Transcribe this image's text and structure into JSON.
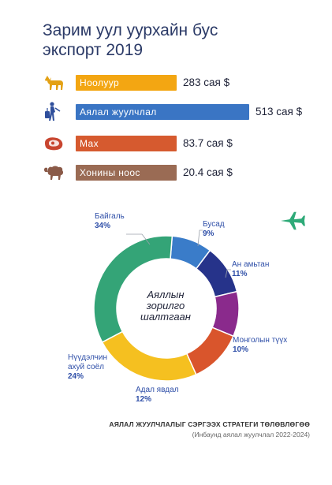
{
  "title": "Зарим уул уурхайн бус экспорт 2019",
  "colors": {
    "cashmere": "#f3a612",
    "tourism": "#3a75c4",
    "meat": "#d65a2f",
    "wool": "#9a6b54",
    "icon_blue": "#2f4f9c",
    "icon_red": "#c8452f",
    "icon_gold": "#e3a115",
    "icon_brown": "#8a5a48",
    "plane": "#2eaa78"
  },
  "icons": [
    "goat-icon",
    "traveler-icon",
    "meat-icon",
    "sheep-icon",
    "airplane-icon"
  ],
  "chart_data": [
    {
      "type": "bar",
      "orientation": "horizontal",
      "title": "Зарим уул уурхайн бус экспорт 2019",
      "categories": [
        "Ноолуур",
        "Аялал жуулчлал",
        "Мах",
        "Хонины ноос"
      ],
      "values": [
        283,
        513,
        83.7,
        20.4
      ],
      "value_labels": [
        "283 сая $",
        "513 сая $",
        "83.7 сая $",
        "20.4 сая $"
      ],
      "unit": "сая $"
    },
    {
      "type": "pie",
      "donut": true,
      "center_label": [
        "Аяллын",
        "зорилго",
        "шалтгаан"
      ],
      "slices": [
        {
          "name": "Байгаль",
          "value": 34,
          "label": "34%",
          "color": "#34a477"
        },
        {
          "name": "Бусад",
          "value": 9,
          "label": "9%",
          "color": "#3a7cc9"
        },
        {
          "name": "Ан амьтан",
          "value": 11,
          "label": "11%",
          "color": "#26338a"
        },
        {
          "name": "Монголын түүх",
          "value": 10,
          "label": "10%",
          "color": "#8a2a8c"
        },
        {
          "name": "Адал явдал",
          "value": 12,
          "label": "12%",
          "color": "#d9552c"
        },
        {
          "name": "Нүүдэлчин ахуй соёл",
          "label_lines": [
            "Нүүдэлчин",
            "ахуй соёл"
          ],
          "value": 24,
          "label": "24%",
          "color": "#f5c020"
        }
      ]
    }
  ],
  "footer": {
    "line1": "АЯЛАЛ ЖУУЛЧЛАЛЫГ СЭРГЭЭХ СТРАТЕГИ ТӨЛӨВЛӨГӨӨ",
    "line2": "(Инбаунд аялал жуулчлал 2022-2024)"
  }
}
